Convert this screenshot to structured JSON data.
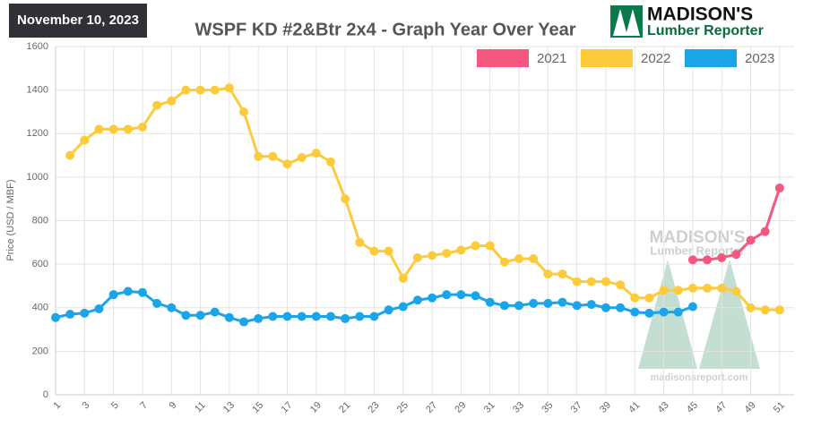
{
  "date": "November 10, 2023",
  "logo": {
    "name": "MADISON'S",
    "subtitle": "Lumber Reporter"
  },
  "watermark": {
    "name": "MADISON'S",
    "subtitle": "Lumber Reporter",
    "url": "madisonsreport.com"
  },
  "chart_data": {
    "type": "line",
    "title": "WSPF KD #2&Btr 2x4 - Graph Year Over Year",
    "y_label": "Price (USD / MBF)",
    "x": [
      1,
      2,
      3,
      4,
      5,
      6,
      7,
      8,
      9,
      10,
      11,
      12,
      13,
      14,
      15,
      16,
      17,
      18,
      19,
      20,
      21,
      22,
      23,
      24,
      25,
      26,
      27,
      28,
      29,
      30,
      31,
      32,
      33,
      34,
      35,
      36,
      37,
      38,
      39,
      40,
      41,
      42,
      43,
      44,
      45,
      46,
      47,
      48,
      49,
      50,
      51
    ],
    "xlim": [
      1,
      52
    ],
    "xticks": [
      1,
      3,
      5,
      7,
      9,
      11,
      13,
      15,
      17,
      19,
      21,
      23,
      25,
      27,
      29,
      31,
      33,
      35,
      37,
      39,
      41,
      43,
      45,
      47,
      49,
      51
    ],
    "ylim": [
      0,
      1600
    ],
    "yticks": [
      0,
      200,
      400,
      600,
      800,
      1000,
      1200,
      1400,
      1600
    ],
    "grid": true,
    "legend": "top-right",
    "series": [
      {
        "name": "2021",
        "color": "#f4587f",
        "values": [
          null,
          null,
          null,
          null,
          null,
          null,
          null,
          null,
          null,
          null,
          null,
          null,
          null,
          null,
          null,
          null,
          null,
          null,
          null,
          null,
          null,
          null,
          null,
          null,
          null,
          null,
          null,
          null,
          null,
          null,
          null,
          null,
          null,
          null,
          null,
          null,
          null,
          null,
          null,
          null,
          null,
          null,
          null,
          null,
          620,
          620,
          630,
          645,
          710,
          750,
          950
        ]
      },
      {
        "name": "2022",
        "color": "#fccb3c",
        "values": [
          null,
          1100,
          1170,
          1220,
          1220,
          1220,
          1230,
          1330,
          1350,
          1400,
          1400,
          1400,
          1410,
          1300,
          1095,
          1095,
          1060,
          1090,
          1110,
          1070,
          900,
          700,
          660,
          660,
          535,
          630,
          640,
          650,
          665,
          685,
          685,
          610,
          625,
          625,
          555,
          555,
          520,
          520,
          520,
          505,
          445,
          445,
          480,
          480,
          490,
          490,
          490,
          475,
          400,
          390,
          390
        ]
      },
      {
        "name": "2023",
        "color": "#1aa5e8",
        "values": [
          355,
          370,
          375,
          395,
          460,
          475,
          470,
          420,
          400,
          365,
          365,
          380,
          355,
          335,
          350,
          360,
          360,
          360,
          360,
          360,
          350,
          360,
          360,
          390,
          405,
          435,
          445,
          460,
          460,
          455,
          425,
          410,
          410,
          420,
          420,
          425,
          410,
          415,
          400,
          400,
          380,
          375,
          380,
          380,
          405,
          null,
          null,
          null,
          null,
          null,
          null
        ]
      }
    ]
  }
}
